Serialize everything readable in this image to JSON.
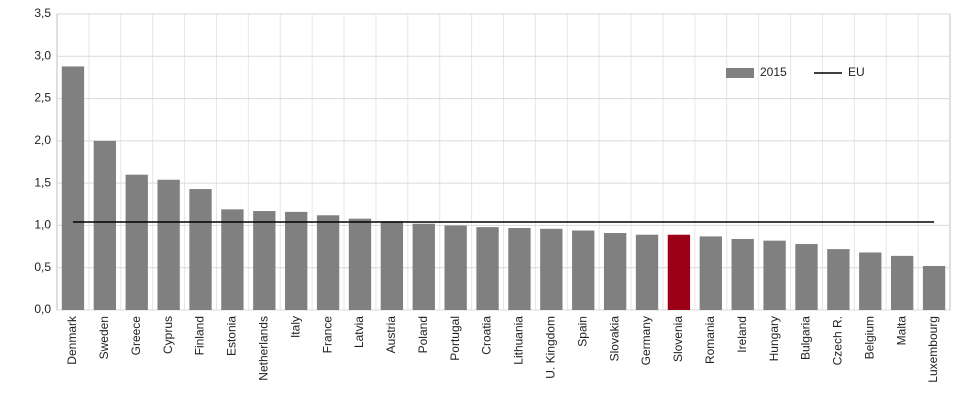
{
  "chart_data": {
    "type": "bar",
    "categories": [
      "Denmark",
      "Sweden",
      "Greece",
      "Cyprus",
      "Finland",
      "Estonia",
      "Netherlands",
      "Italy",
      "France",
      "Latvia",
      "Austria",
      "Poland",
      "Portugal",
      "Croatia",
      "Lithuania",
      "U. Kingdom",
      "Spain",
      "Slovakia",
      "Germany",
      "Slovenia",
      "Romania",
      "Ireland",
      "Hungary",
      "Bulgaria",
      "Czech R.",
      "Belgium",
      "Malta",
      "Luxembourg"
    ],
    "series": [
      {
        "name": "2015",
        "color": "#808080",
        "values": [
          2.88,
          2.0,
          1.6,
          1.54,
          1.43,
          1.19,
          1.17,
          1.16,
          1.12,
          1.08,
          1.05,
          1.02,
          1.0,
          0.98,
          0.97,
          0.96,
          0.94,
          0.91,
          0.89,
          0.89,
          0.87,
          0.84,
          0.82,
          0.78,
          0.72,
          0.68,
          0.64,
          0.52
        ]
      },
      {
        "name": "EU",
        "type": "line",
        "color": "#000000",
        "values": [
          1.04,
          1.04,
          1.04,
          1.04,
          1.04,
          1.04,
          1.04,
          1.04,
          1.04,
          1.04,
          1.04,
          1.04,
          1.04,
          1.04,
          1.04,
          1.04,
          1.04,
          1.04,
          1.04,
          1.04,
          1.04,
          1.04,
          1.04,
          1.04,
          1.04,
          1.04,
          1.04,
          1.04
        ]
      }
    ],
    "highlight": {
      "category": "Slovenia",
      "color": "#9b0016"
    },
    "ylim": [
      0,
      3.5
    ],
    "yticks": [
      {
        "value": 0,
        "label": "0,0"
      },
      {
        "value": 0.5,
        "label": "0,5"
      },
      {
        "value": 1,
        "label": "1,0"
      },
      {
        "value": 1.5,
        "label": "1,5"
      },
      {
        "value": 2,
        "label": "2,0"
      },
      {
        "value": 2.5,
        "label": "2,5"
      },
      {
        "value": 3,
        "label": "3,0"
      },
      {
        "value": 3.5,
        "label": "3,5"
      }
    ],
    "grid": true,
    "legend": "upper right"
  }
}
